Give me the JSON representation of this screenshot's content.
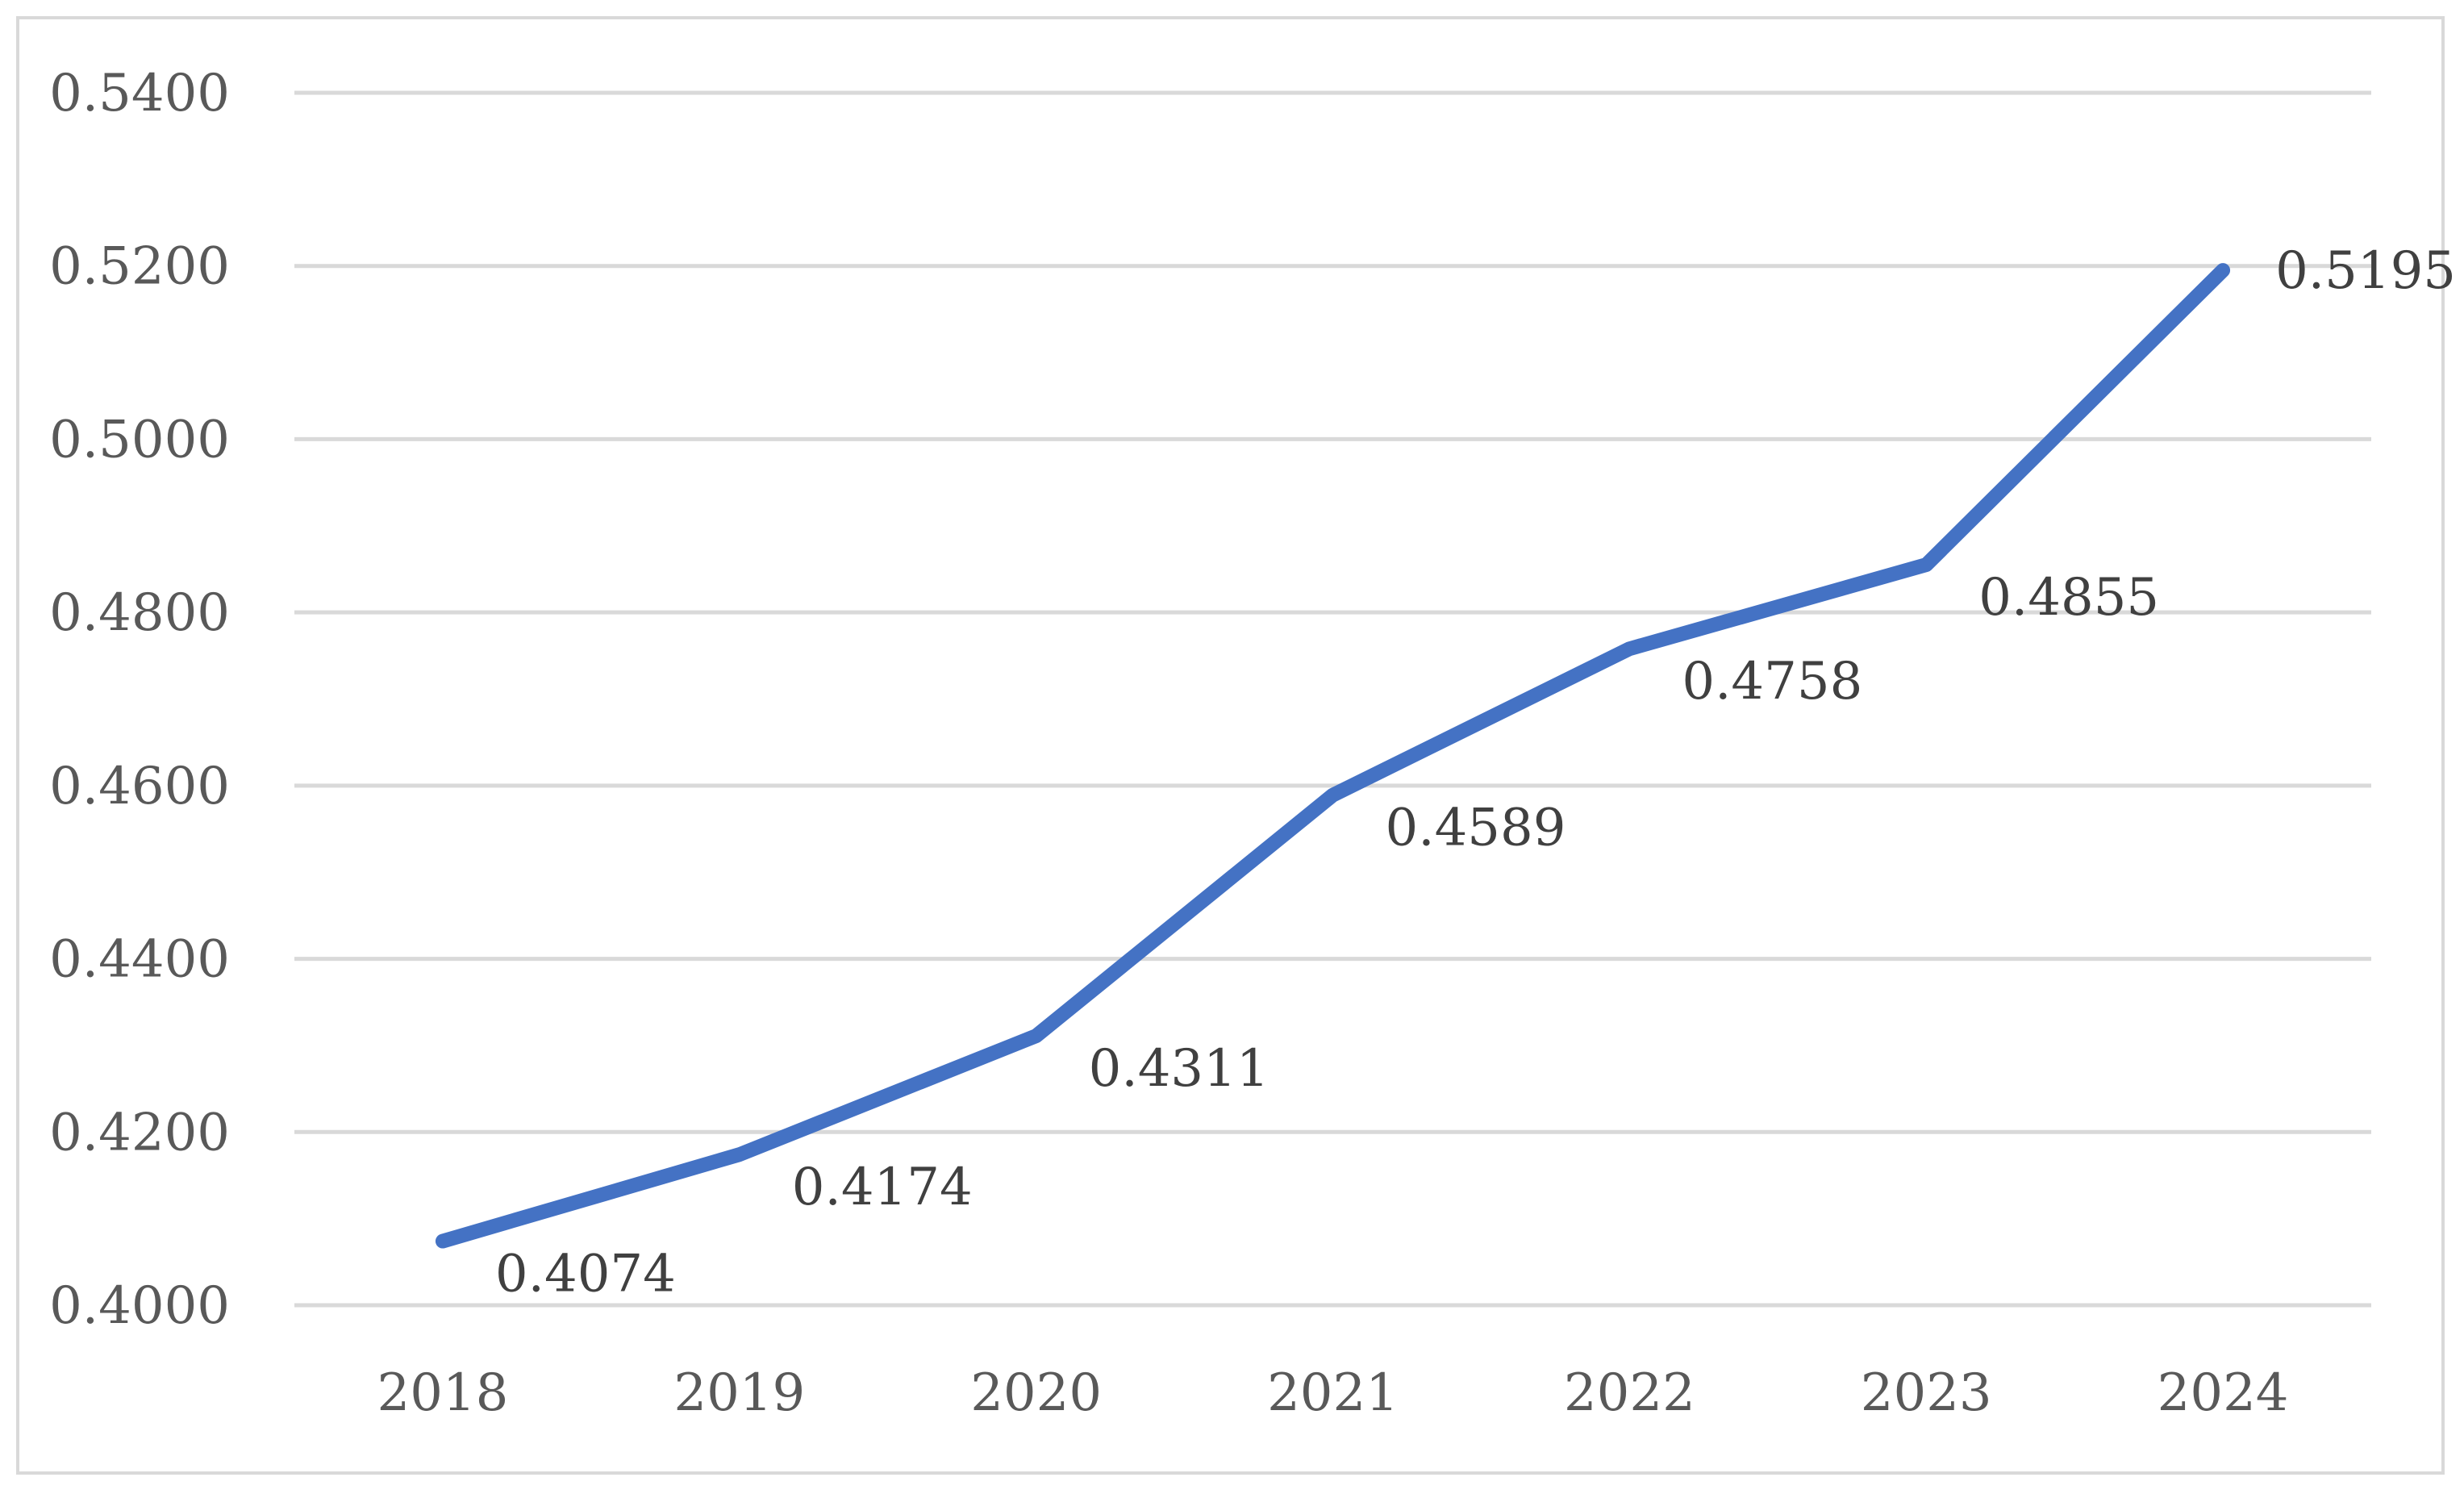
{
  "chart_data": {
    "type": "line",
    "categories": [
      "2018",
      "2019",
      "2020",
      "2021",
      "2022",
      "2023",
      "2024"
    ],
    "series": [
      {
        "values": [
          0.4074,
          0.4174,
          0.4311,
          0.4589,
          0.4758,
          0.4855,
          0.5195
        ]
      }
    ],
    "data_labels": [
      "0.4074",
      "0.4174",
      "0.4311",
      "0.4589",
      "0.4758",
      "0.4855",
      "0.5195"
    ],
    "y_ticks": [
      "0.4000",
      "0.4200",
      "0.4400",
      "0.4600",
      "0.4800",
      "0.5000",
      "0.5200",
      "0.5400"
    ],
    "ylim": [
      0.4,
      0.54
    ],
    "title": "",
    "xlabel": "",
    "ylabel": "",
    "grid": true,
    "legend": "none",
    "colors": {
      "line": "#4472c4",
      "grid": "#d9d9d9",
      "frame": "#d9d9d9"
    }
  }
}
